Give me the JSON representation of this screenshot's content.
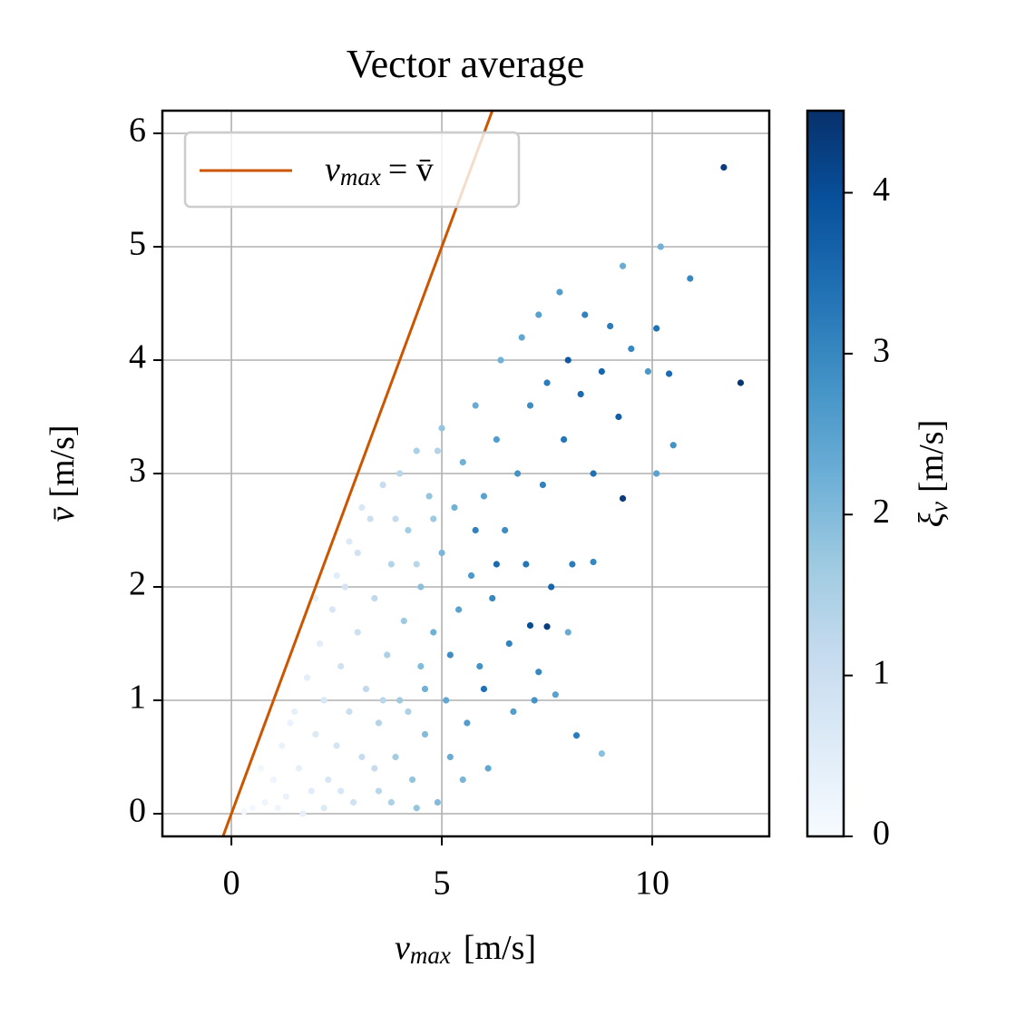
{
  "chart_data": {
    "type": "scatter",
    "title": "Vector average",
    "xlabel": {
      "symbol": "v",
      "subscript": "max",
      "unit": "[m/s]"
    },
    "ylabel": {
      "symbol": "v̄",
      "unit": "[m/s]"
    },
    "xlim": [
      -1.64,
      12.78
    ],
    "xticks": [
      0,
      5,
      10
    ],
    "ylim": [
      -0.2,
      6.2
    ],
    "yticks": [
      0,
      1,
      2,
      3,
      4,
      5,
      6
    ],
    "grid": true,
    "line": {
      "symbol": "v",
      "subscript": "max",
      "rest": "= v̄",
      "color": "#cc5500",
      "x": [
        -0.2,
        6.25
      ],
      "y": [
        -0.2,
        6.25
      ]
    },
    "legend": "upper left",
    "colorbar": {
      "symbol": "ξ",
      "subscript": "v",
      "unit": "[m/s]",
      "lim": [
        0,
        4.51
      ],
      "ticks": [
        0,
        1,
        2,
        3,
        4
      ],
      "colormap": [
        "#f7fbff",
        "#deebf7",
        "#c6dbef",
        "#9ecae1",
        "#6baed6",
        "#4292c6",
        "#2171b5",
        "#08519c",
        "#08306b"
      ]
    },
    "x": [
      11.7,
      12.1,
      10.2,
      10.9,
      9.3,
      10.5,
      10.1,
      9.3,
      8.2,
      8.8,
      8.6,
      7.1,
      7.5,
      7.3,
      7.7,
      8.0,
      0.5,
      0.8,
      1.0,
      1.2,
      1.3,
      1.5,
      1.6,
      1.8,
      1.9,
      2.0,
      2.1,
      2.2,
      2.3,
      2.4,
      2.5,
      2.6,
      2.7,
      2.8,
      2.9,
      3.0,
      3.0,
      3.1,
      3.2,
      3.3,
      3.4,
      3.5,
      3.5,
      3.6,
      3.7,
      3.8,
      3.9,
      4.0,
      4.0,
      4.1,
      4.2,
      4.3,
      4.4,
      4.5,
      4.5,
      4.6,
      4.7,
      4.8,
      4.9,
      5.0,
      5.0,
      5.1,
      5.2,
      5.3,
      5.4,
      5.5,
      5.6,
      5.7,
      5.8,
      5.9,
      6.0,
      6.1,
      6.2,
      6.3,
      6.4,
      6.5,
      6.6,
      6.7,
      6.8,
      6.9,
      7.0,
      7.1,
      7.2,
      7.3,
      7.4,
      7.5,
      7.6,
      7.8,
      7.9,
      8.0,
      8.1,
      8.3,
      8.4,
      8.6,
      8.8,
      9.0,
      9.2,
      9.5,
      9.9,
      10.1,
      10.4,
      1.4,
      1.7,
      2.0,
      2.5,
      2.8,
      3.1,
      3.4,
      3.6,
      3.9,
      4.2,
      4.4,
      4.6,
      4.8,
      4.9,
      5.2,
      5.5,
      5.8,
      6.0,
      6.3,
      0.3,
      0.7,
      1.1,
      2.2,
      2.6,
      3.8,
      4.4
    ],
    "y": [
      5.7,
      3.8,
      5.0,
      4.72,
      4.83,
      3.25,
      3.0,
      2.78,
      0.69,
      0.53,
      2.22,
      1.66,
      1.65,
      1.25,
      1.05,
      1.6,
      0.05,
      0.1,
      0.3,
      0.6,
      0.15,
      0.9,
      0.4,
      1.2,
      0.2,
      0.7,
      1.5,
      1.0,
      0.3,
      1.8,
      0.6,
      1.3,
      2.0,
      0.9,
      0.1,
      1.6,
      2.3,
      0.5,
      1.1,
      2.6,
      1.9,
      0.8,
      0.2,
      2.9,
      1.4,
      2.2,
      0.5,
      3.0,
      1.0,
      1.7,
      2.5,
      0.3,
      3.2,
      1.3,
      2.0,
      0.7,
      2.8,
      1.6,
      0.1,
      3.4,
      2.3,
      1.0,
      0.5,
      2.7,
      1.8,
      3.1,
      0.8,
      2.1,
      3.6,
      1.3,
      2.8,
      0.4,
      1.9,
      3.3,
      4.0,
      2.5,
      1.5,
      0.9,
      3.0,
      4.2,
      2.2,
      3.6,
      1.0,
      4.4,
      2.9,
      3.8,
      2.0,
      4.6,
      3.3,
      4.0,
      2.2,
      3.7,
      4.4,
      3.0,
      3.9,
      4.3,
      3.5,
      4.1,
      3.9,
      4.28,
      3.88,
      0.8,
      0.0,
      1.9,
      2.1,
      2.4,
      2.7,
      0.4,
      1.0,
      2.6,
      0.9,
      2.2,
      1.1,
      2.6,
      3.2,
      1.4,
      0.3,
      2.5,
      1.1,
      2.2,
      0.02,
      0.4,
      0.05,
      0.05,
      0.2,
      0.1,
      0.05
    ],
    "color_values": [
      4.3,
      4.4,
      2.2,
      3.0,
      2.3,
      2.8,
      2.5,
      4.3,
      3.2,
      1.9,
      3.0,
      4.0,
      4.3,
      3.0,
      2.5,
      2.3,
      0.1,
      0.2,
      0.2,
      0.3,
      0.3,
      0.4,
      0.4,
      0.5,
      0.5,
      0.6,
      0.5,
      0.7,
      0.7,
      0.7,
      0.8,
      0.9,
      0.8,
      1.0,
      0.9,
      1.0,
      0.9,
      1.1,
      1.2,
      1.0,
      1.2,
      1.4,
      1.3,
      1.1,
      1.5,
      1.4,
      1.6,
      1.3,
      1.7,
      1.7,
      1.6,
      1.8,
      1.5,
      2.0,
      1.9,
      2.0,
      1.8,
      2.2,
      2.0,
      1.8,
      2.1,
      2.4,
      2.3,
      2.2,
      2.5,
      2.2,
      2.6,
      2.7,
      2.3,
      2.8,
      2.5,
      2.4,
      3.0,
      2.6,
      2.2,
      2.9,
      3.1,
      2.6,
      2.8,
      2.4,
      3.3,
      2.9,
      2.8,
      2.5,
      3.1,
      3.2,
      3.6,
      2.6,
      3.3,
      3.8,
      3.2,
      3.5,
      3.1,
      3.4,
      3.6,
      3.2,
      3.7,
      3.0,
      2.7,
      3.4,
      3.5,
      0.3,
      0.4,
      0.4,
      0.5,
      0.6,
      0.7,
      1.1,
      1.3,
      1.1,
      1.5,
      1.3,
      2.2,
      1.7,
      1.4,
      2.9,
      2.1,
      3.1,
      3.4,
      3.5,
      0.1,
      0.15,
      0.2,
      0.6,
      0.7,
      1.5,
      1.8
    ]
  }
}
